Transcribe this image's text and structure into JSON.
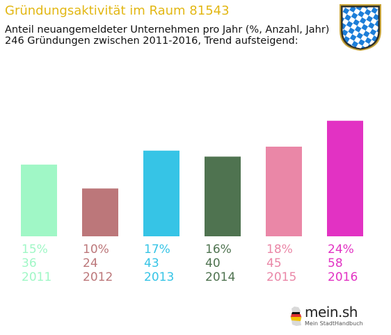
{
  "header": {
    "title": "Gründungsaktivität im Raum 81543",
    "subtitle_line1": "Anteil neuangemeldeter Unternehmen pro Jahr (%, Anzahl, Jahr)",
    "subtitle_line2": "246 Gründungen zwischen 2011-2016, Trend aufsteigend:"
  },
  "logo": {
    "name": "mein.sh",
    "tagline": "Mein StadtHandbuch",
    "icon": "germany-map-icon"
  },
  "crest": {
    "icon": "bavaria-crest-icon"
  },
  "chart_data": {
    "type": "bar",
    "categories": [
      "2011",
      "2012",
      "2013",
      "2014",
      "2015",
      "2016"
    ],
    "percent_labels": [
      "15%",
      "10%",
      "17%",
      "16%",
      "18%",
      "24%"
    ],
    "count_labels": [
      "36",
      "24",
      "43",
      "40",
      "45",
      "58"
    ],
    "values": [
      36,
      24,
      43,
      40,
      45,
      58
    ],
    "percent": [
      15,
      10,
      17,
      16,
      18,
      24
    ],
    "colors": [
      "#a0f7c6",
      "#bc777a",
      "#36c4e6",
      "#4f7350",
      "#ea87a7",
      "#e232c3"
    ],
    "ylim": [
      0,
      60
    ],
    "grid": false,
    "legend": "none"
  }
}
